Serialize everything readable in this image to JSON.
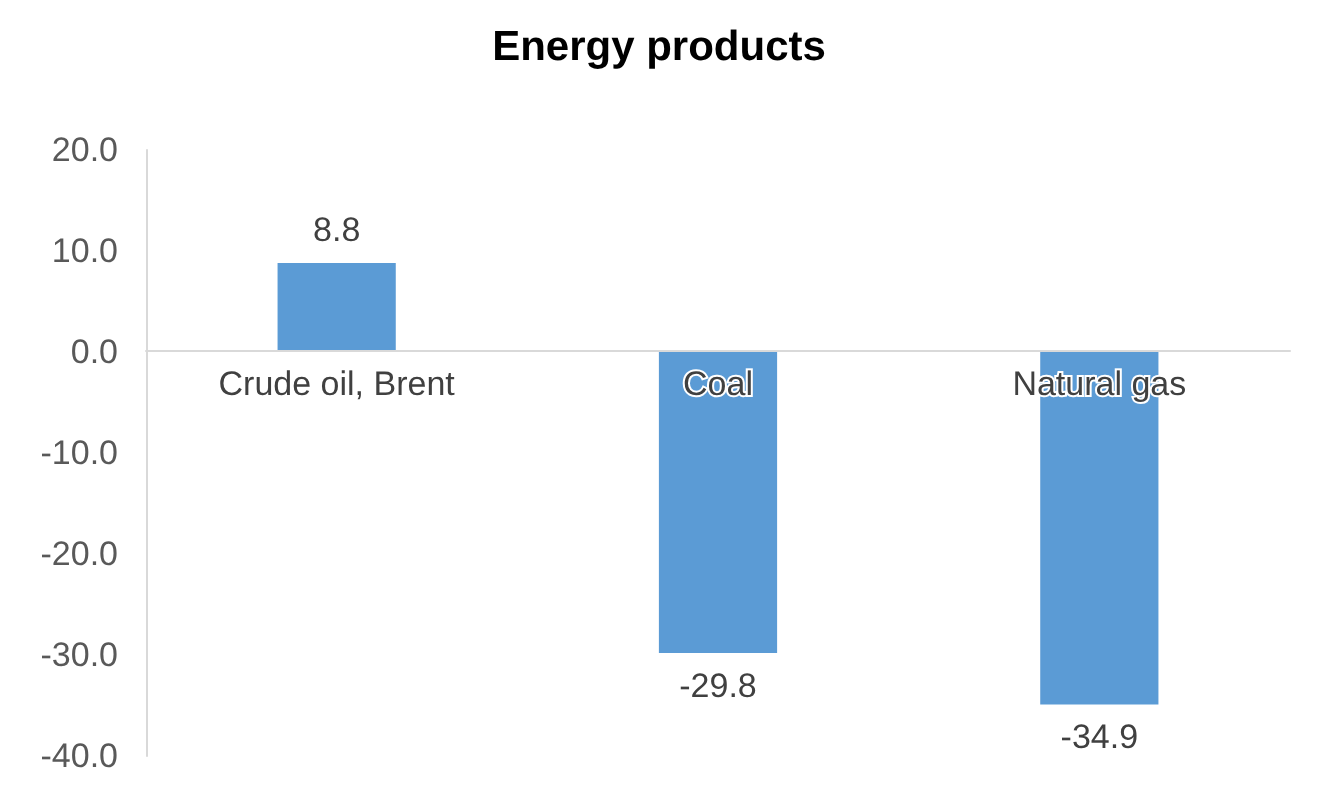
{
  "chart_data": {
    "type": "bar",
    "title": "Energy products",
    "categories": [
      "Crude oil, Brent",
      "Coal",
      "Natural gas"
    ],
    "values": [
      8.8,
      -29.8,
      -34.9
    ],
    "color": "#5b9bd5",
    "ylim": [
      -40,
      20
    ],
    "yticks": [
      {
        "value": -40,
        "label": "-40.0"
      },
      {
        "value": -30,
        "label": "-30.0"
      },
      {
        "value": -20,
        "label": "-20.0"
      },
      {
        "value": -10,
        "label": "-10.0"
      },
      {
        "value": 0,
        "label": "0.0"
      },
      {
        "value": 10,
        "label": "10.0"
      },
      {
        "value": 20,
        "label": "20.0"
      }
    ],
    "data_labels": true
  }
}
